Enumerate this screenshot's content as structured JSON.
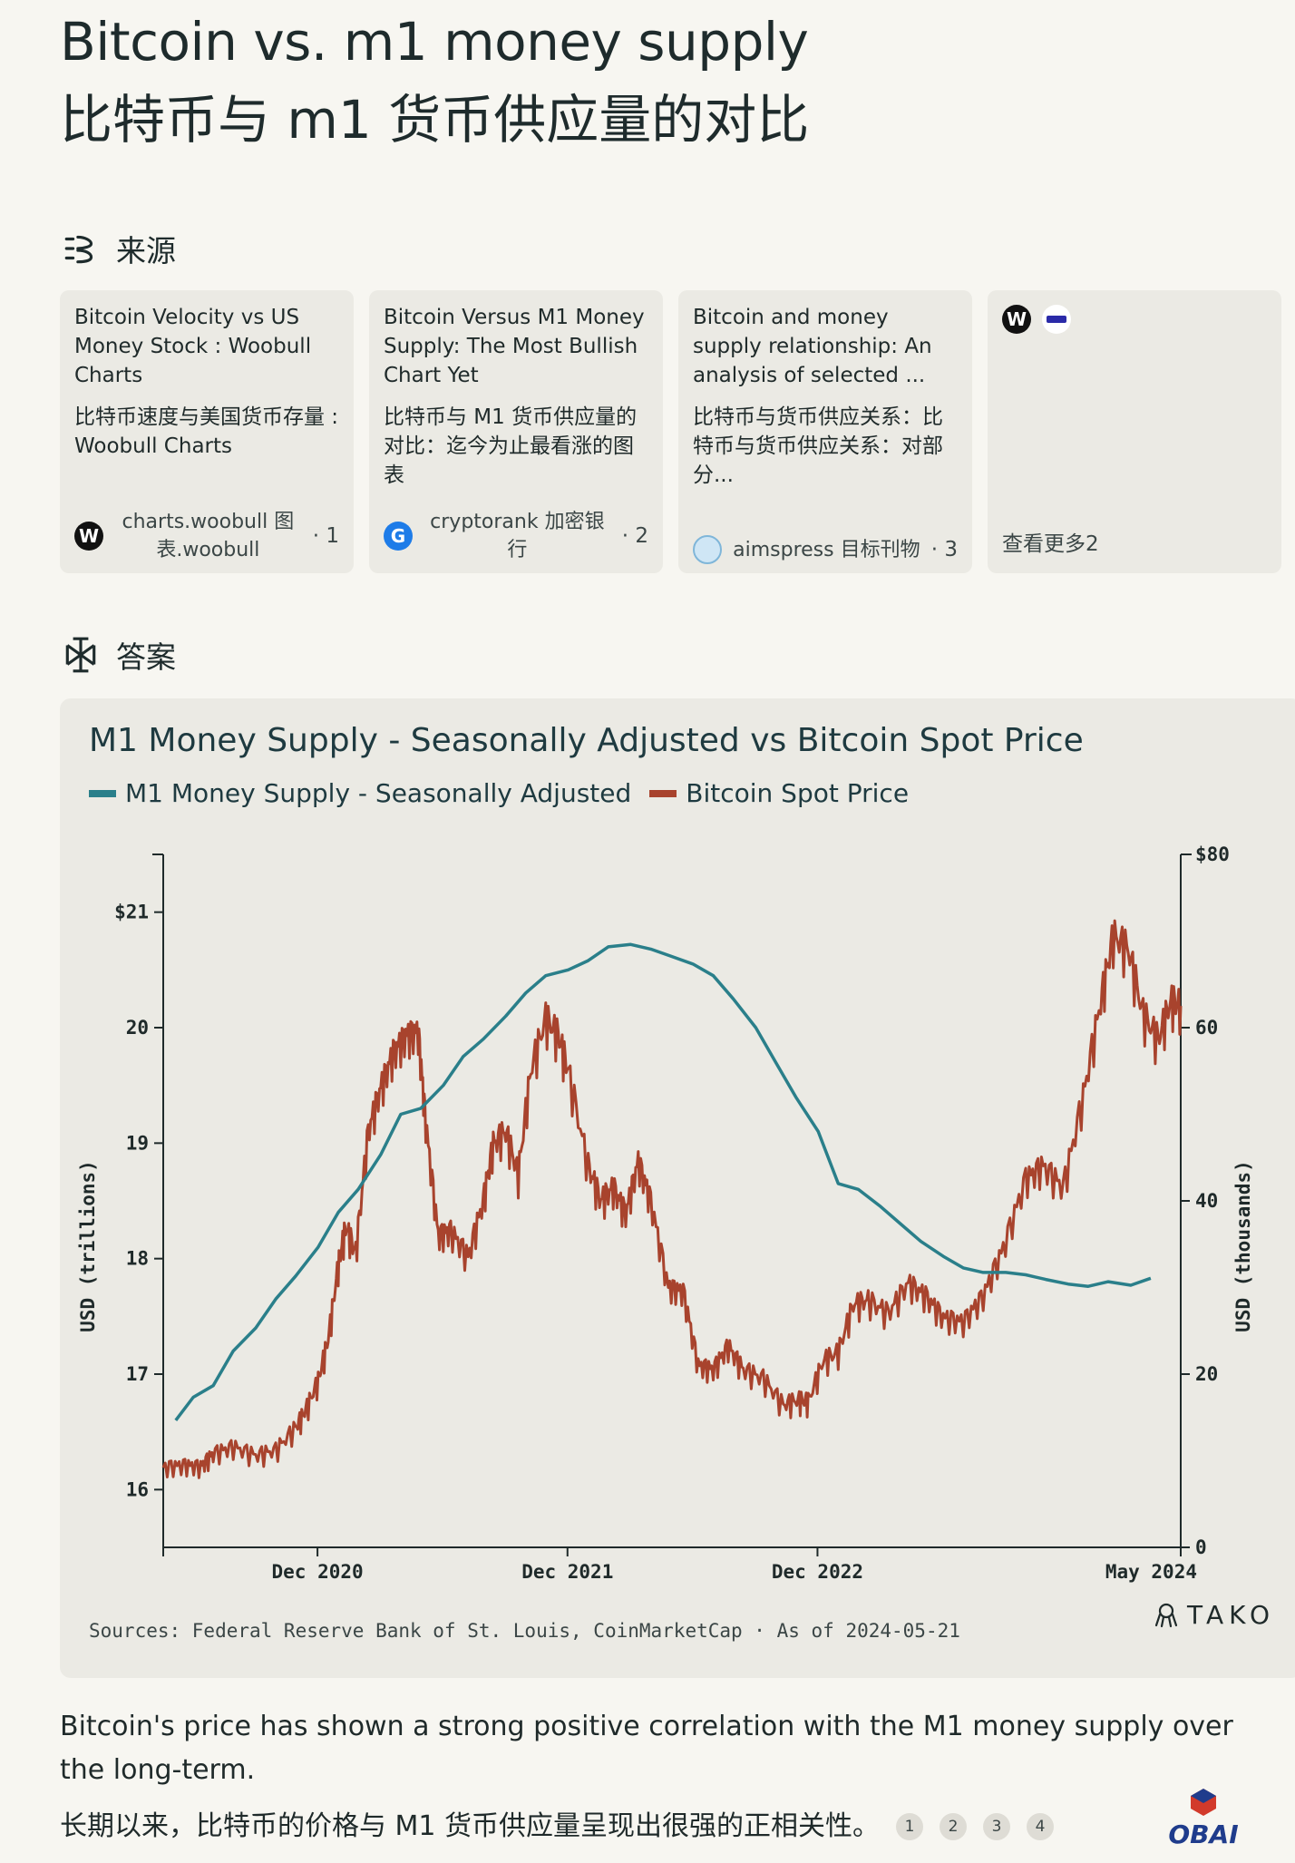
{
  "title_en": "Bitcoin vs. m1 money supply",
  "title_zh": "比特币与 m1 货币供应量的对比",
  "sources_section": {
    "label": "来源",
    "cards": [
      {
        "title": "Bitcoin Velocity vs US Money Stock : Woobull Charts",
        "title_zh": "比特币速度与美国货币存量 : Woobull Charts",
        "site": "charts.woobull 图表.woobull",
        "num": "· 1",
        "favicon": "woobull-icon"
      },
      {
        "title": "Bitcoin Versus M1 Money Supply: The Most Bullish Chart Yet",
        "title_zh": "比特币与 M1 货币供应量的对比：迄今为止最看涨的图表",
        "site": "cryptorank 加密银行",
        "num": "· 2",
        "favicon": "cryptorank-icon"
      },
      {
        "title": "Bitcoin and money supply relationship: An analysis of selected ...",
        "title_zh": "比特币与货币供应关系：比特币与货币供应关系：对部分...",
        "site": "aimspress 目标刊物",
        "num": "· 3",
        "favicon": "aimspress-icon"
      }
    ],
    "more_label": "查看更多2"
  },
  "answer_section": {
    "label": "答案"
  },
  "chart": {
    "title": "M1 Money Supply - Seasonally Adjusted vs Bitcoin Spot Price",
    "legend_m1": "M1 Money Supply - Seasonally Adjusted",
    "legend_btc": "Bitcoin Spot Price",
    "color_m1": "#2a7f8a",
    "color_btc": "#a8432d",
    "left_axis_label": "USD (trillions)",
    "right_axis_label": "USD (thousands)",
    "sources_line": "Sources: Federal Reserve Bank of St. Louis, CoinMarketCap · As of 2024-05-21",
    "brand": "TAKO"
  },
  "chart_data": {
    "type": "line",
    "title": "M1 Money Supply - Seasonally Adjusted vs Bitcoin Spot Price",
    "x_ticks": [
      "Dec 2020",
      "Dec 2021",
      "Dec 2022",
      "May 2024"
    ],
    "x_tick_pos": [
      2020.917,
      2021.917,
      2022.917,
      2024.37
    ],
    "xlim": [
      2020.3,
      2024.37
    ],
    "left_axis": {
      "label": "USD (trillions)",
      "ylim": [
        15.5,
        21.5
      ],
      "ticks": [
        "16",
        "17",
        "18",
        "19",
        "20",
        "$21"
      ],
      "tick_values": [
        16,
        17,
        18,
        19,
        20,
        21
      ]
    },
    "right_axis": {
      "label": "USD (thousands)",
      "ylim": [
        0,
        80
      ],
      "ticks": [
        "0",
        "20",
        "40",
        "60",
        "$80"
      ],
      "tick_values": [
        0,
        20,
        40,
        60,
        80
      ]
    },
    "series": [
      {
        "name": "M1 Money Supply - Seasonally Adjusted",
        "axis": "left",
        "points": [
          [
            2020.35,
            16.6
          ],
          [
            2020.42,
            16.8
          ],
          [
            2020.5,
            16.9
          ],
          [
            2020.58,
            17.2
          ],
          [
            2020.67,
            17.4
          ],
          [
            2020.75,
            17.65
          ],
          [
            2020.83,
            17.85
          ],
          [
            2020.92,
            18.1
          ],
          [
            2021.0,
            18.4
          ],
          [
            2021.08,
            18.6
          ],
          [
            2021.17,
            18.9
          ],
          [
            2021.25,
            19.25
          ],
          [
            2021.33,
            19.3
          ],
          [
            2021.42,
            19.5
          ],
          [
            2021.5,
            19.75
          ],
          [
            2021.58,
            19.9
          ],
          [
            2021.67,
            20.1
          ],
          [
            2021.75,
            20.3
          ],
          [
            2021.83,
            20.45
          ],
          [
            2021.92,
            20.5
          ],
          [
            2022.0,
            20.58
          ],
          [
            2022.08,
            20.7
          ],
          [
            2022.17,
            20.72
          ],
          [
            2022.25,
            20.68
          ],
          [
            2022.33,
            20.62
          ],
          [
            2022.42,
            20.55
          ],
          [
            2022.5,
            20.45
          ],
          [
            2022.58,
            20.25
          ],
          [
            2022.67,
            20.0
          ],
          [
            2022.75,
            19.7
          ],
          [
            2022.83,
            19.4
          ],
          [
            2022.92,
            19.1
          ],
          [
            2023.0,
            18.65
          ],
          [
            2023.08,
            18.6
          ],
          [
            2023.17,
            18.45
          ],
          [
            2023.25,
            18.3
          ],
          [
            2023.33,
            18.15
          ],
          [
            2023.42,
            18.02
          ],
          [
            2023.5,
            17.92
          ],
          [
            2023.58,
            17.88
          ],
          [
            2023.67,
            17.88
          ],
          [
            2023.75,
            17.86
          ],
          [
            2023.83,
            17.82
          ],
          [
            2023.92,
            17.78
          ],
          [
            2024.0,
            17.76
          ],
          [
            2024.08,
            17.8
          ],
          [
            2024.17,
            17.77
          ],
          [
            2024.25,
            17.83
          ]
        ]
      },
      {
        "name": "Bitcoin Spot Price",
        "axis": "right",
        "points": [
          [
            2020.3,
            9.2
          ],
          [
            2020.38,
            9.5
          ],
          [
            2020.45,
            9.3
          ],
          [
            2020.5,
            10.8
          ],
          [
            2020.58,
            11.6
          ],
          [
            2020.67,
            10.6
          ],
          [
            2020.75,
            11.2
          ],
          [
            2020.83,
            13.8
          ],
          [
            2020.87,
            15.8
          ],
          [
            2020.92,
            19.2
          ],
          [
            2020.96,
            24.0
          ],
          [
            2021.0,
            32.5
          ],
          [
            2021.03,
            37.0
          ],
          [
            2021.07,
            34.0
          ],
          [
            2021.12,
            48.0
          ],
          [
            2021.17,
            53.0
          ],
          [
            2021.22,
            57.0
          ],
          [
            2021.27,
            59.0
          ],
          [
            2021.32,
            59.5
          ],
          [
            2021.35,
            49.0
          ],
          [
            2021.4,
            36.0
          ],
          [
            2021.45,
            36.5
          ],
          [
            2021.52,
            33.5
          ],
          [
            2021.58,
            40.0
          ],
          [
            2021.62,
            46.5
          ],
          [
            2021.67,
            48.0
          ],
          [
            2021.72,
            43.0
          ],
          [
            2021.77,
            55.0
          ],
          [
            2021.83,
            61.0
          ],
          [
            2021.88,
            59.0
          ],
          [
            2021.92,
            55.0
          ],
          [
            2022.0,
            44.0
          ],
          [
            2022.05,
            40.0
          ],
          [
            2022.1,
            41.5
          ],
          [
            2022.15,
            38.5
          ],
          [
            2022.2,
            44.5
          ],
          [
            2022.25,
            40.0
          ],
          [
            2022.32,
            30.0
          ],
          [
            2022.38,
            29.5
          ],
          [
            2022.44,
            21.0
          ],
          [
            2022.5,
            20.5
          ],
          [
            2022.56,
            23.2
          ],
          [
            2022.62,
            20.5
          ],
          [
            2022.7,
            19.5
          ],
          [
            2022.78,
            16.4
          ],
          [
            2022.84,
            17.0
          ],
          [
            2022.88,
            16.8
          ],
          [
            2022.94,
            21.5
          ],
          [
            2023.0,
            22.5
          ],
          [
            2023.06,
            28.0
          ],
          [
            2023.12,
            28.5
          ],
          [
            2023.2,
            27.0
          ],
          [
            2023.28,
            30.5
          ],
          [
            2023.35,
            29.0
          ],
          [
            2023.42,
            26.5
          ],
          [
            2023.5,
            26.0
          ],
          [
            2023.58,
            29.0
          ],
          [
            2023.66,
            34.5
          ],
          [
            2023.75,
            42.5
          ],
          [
            2023.82,
            44.0
          ],
          [
            2023.9,
            41.5
          ],
          [
            2023.98,
            52.0
          ],
          [
            2024.05,
            63.0
          ],
          [
            2024.1,
            70.5
          ],
          [
            2024.16,
            69.0
          ],
          [
            2024.22,
            61.5
          ],
          [
            2024.28,
            58.5
          ],
          [
            2024.33,
            63.0
          ],
          [
            2024.37,
            62.5
          ]
        ]
      }
    ]
  },
  "answer_en": "Bitcoin's price has shown a strong positive correlation with the M1 money supply over the long-term.",
  "answer_zh": "长期以来，比特币的价格与 M1 货币供应量呈现出很强的正相关性。",
  "citations": [
    "1",
    "2",
    "3",
    "4"
  ],
  "watermark_text": "OBAI"
}
